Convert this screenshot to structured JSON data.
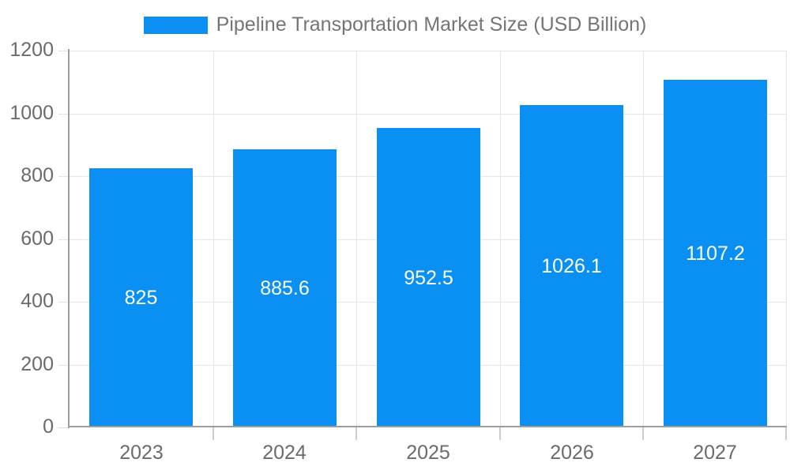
{
  "chart_data": {
    "type": "bar",
    "title": "Pipeline Transportation Market Size (USD Billion)",
    "legend": {
      "label": "Pipeline Transportation Market Size (USD Billion)",
      "position": "top"
    },
    "categories": [
      "2023",
      "2024",
      "2025",
      "2026",
      "2027"
    ],
    "series": [
      {
        "name": "Pipeline Transportation Market Size (USD Billion)",
        "values": [
          825,
          885.6,
          952.5,
          1026.1,
          1107.2
        ]
      }
    ],
    "value_labels": [
      "825",
      "885.6",
      "952.5",
      "1026.1",
      "1107.2"
    ],
    "xlabel": "",
    "ylabel": "",
    "ylim": [
      0,
      1200
    ],
    "yticks": [
      0,
      200,
      400,
      600,
      800,
      1000,
      1200
    ],
    "ytick_labels": [
      "0",
      "200",
      "400",
      "600",
      "800",
      "1000",
      "1200"
    ],
    "grid": true,
    "colors": {
      "bar": "#0a90f2",
      "grid": "#e6e6e6",
      "axis": "#9e9e9e",
      "text": "#6b6b6b",
      "legend_text": "#757575",
      "annotation": "#ffffff",
      "background": "#ffffff"
    }
  }
}
